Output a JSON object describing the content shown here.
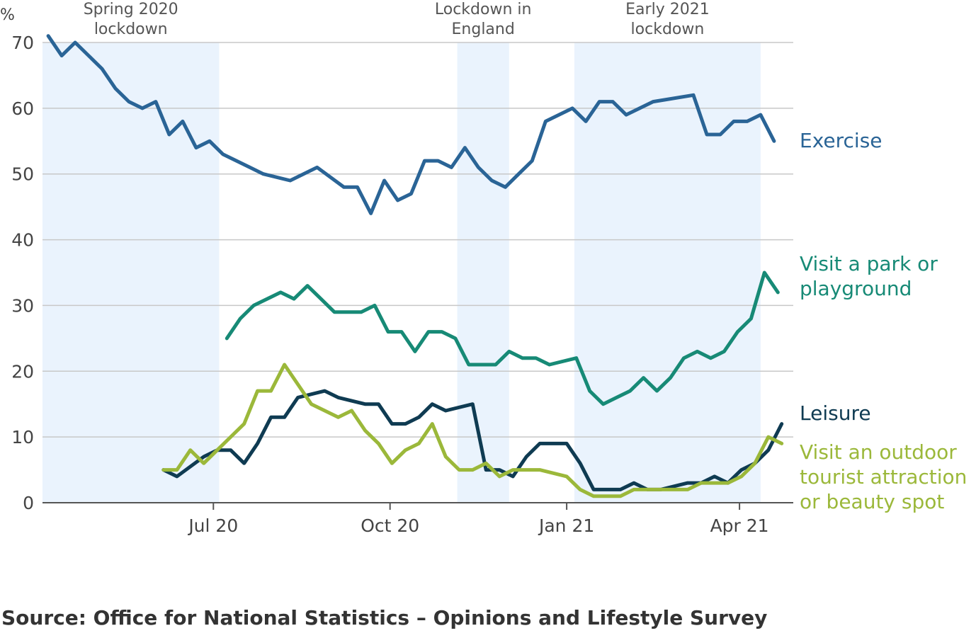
{
  "chart_data": {
    "type": "line",
    "unit_label": "%",
    "ylim": [
      0,
      72
    ],
    "y_ticks": [
      0,
      10,
      20,
      30,
      40,
      50,
      60,
      70
    ],
    "grid": true,
    "x_start": "2020-04-03",
    "x_end": "2021-04-29",
    "x_ticks": [
      {
        "date": "2020-07-01",
        "label": "Jul 20"
      },
      {
        "date": "2020-10-01",
        "label": "Oct 20"
      },
      {
        "date": "2021-01-01",
        "label": "Jan 21"
      },
      {
        "date": "2021-04-01",
        "label": "Apr 21"
      }
    ],
    "shaded_periods": [
      {
        "start": "2020-04-03",
        "end": "2020-07-04",
        "label_lines": [
          "Spring 2020",
          "lockdown"
        ]
      },
      {
        "start": "2020-11-05",
        "end": "2020-12-02",
        "label_lines": [
          "Lockdown in",
          "England"
        ]
      },
      {
        "start": "2021-01-05",
        "end": "2021-04-12",
        "label_lines": [
          "Early 2021",
          "lockdown"
        ]
      }
    ],
    "series": [
      {
        "name": "Exercise",
        "label_lines": [
          "Exercise"
        ],
        "color": "#2a6496",
        "dates": [
          "2020-04-06",
          "2020-04-13",
          "2020-04-20",
          "2020-05-04",
          "2020-05-11",
          "2020-05-18",
          "2020-05-25",
          "2020-06-01",
          "2020-06-08",
          "2020-06-15",
          "2020-06-22",
          "2020-06-29",
          "2020-07-06",
          "2020-07-13",
          "2020-07-20",
          "2020-07-27",
          "2020-08-10",
          "2020-08-24",
          "2020-09-07",
          "2020-09-14",
          "2020-09-21",
          "2020-09-28",
          "2020-10-05",
          "2020-10-12",
          "2020-10-19",
          "2020-10-26",
          "2020-11-02",
          "2020-11-09",
          "2020-11-16",
          "2020-11-23",
          "2020-11-30",
          "2020-12-07",
          "2020-12-14",
          "2020-12-21",
          "2021-01-04",
          "2021-01-11",
          "2021-01-18",
          "2021-01-25",
          "2021-02-01",
          "2021-02-08",
          "2021-02-15",
          "2021-03-08",
          "2021-03-15",
          "2021-03-22",
          "2021-03-29",
          "2021-04-05",
          "2021-04-12",
          "2021-04-19"
        ],
        "values": [
          71,
          68,
          70,
          66,
          63,
          61,
          60,
          61,
          56,
          58,
          54,
          55,
          53,
          52,
          51,
          50,
          49,
          51,
          48,
          48,
          44,
          49,
          46,
          47,
          52,
          52,
          51,
          54,
          51,
          49,
          48,
          50,
          52,
          58,
          60,
          58,
          61,
          61,
          59,
          60,
          61,
          62,
          56,
          56,
          58,
          58,
          59,
          55
        ]
      },
      {
        "name": "Visit a park or playground",
        "label_lines": [
          "Visit a park or",
          "playground"
        ],
        "color": "#178a76",
        "dates": [
          "2020-07-08",
          "2020-07-15",
          "2020-07-22",
          "2020-08-05",
          "2020-08-12",
          "2020-08-19",
          "2020-08-26",
          "2020-09-02",
          "2020-09-09",
          "2020-09-16",
          "2020-09-23",
          "2020-09-30",
          "2020-10-07",
          "2020-10-14",
          "2020-10-21",
          "2020-10-28",
          "2020-11-04",
          "2020-11-11",
          "2020-11-18",
          "2020-11-25",
          "2020-12-02",
          "2020-12-09",
          "2020-12-16",
          "2020-12-23",
          "2021-01-06",
          "2021-01-13",
          "2021-01-20",
          "2021-01-27",
          "2021-02-03",
          "2021-02-10",
          "2021-02-17",
          "2021-02-24",
          "2021-03-03",
          "2021-03-10",
          "2021-03-17",
          "2021-03-24",
          "2021-03-31",
          "2021-04-07",
          "2021-04-14",
          "2021-04-21"
        ],
        "values": [
          25,
          28,
          30,
          32,
          31,
          33,
          31,
          29,
          29,
          29,
          30,
          26,
          26,
          23,
          26,
          26,
          25,
          21,
          21,
          21,
          23,
          22,
          22,
          21,
          22,
          17,
          15,
          16,
          17,
          19,
          17,
          19,
          22,
          23,
          22,
          23,
          26,
          28,
          35,
          32
        ]
      },
      {
        "name": "Leisure",
        "label_lines": [
          "Leisure"
        ],
        "color": "#0f3b52",
        "dates": [
          "2020-06-05",
          "2020-06-12",
          "2020-06-26",
          "2020-07-03",
          "2020-07-10",
          "2020-07-17",
          "2020-07-24",
          "2020-07-31",
          "2020-08-07",
          "2020-08-14",
          "2020-08-28",
          "2020-09-04",
          "2020-09-18",
          "2020-09-25",
          "2020-10-02",
          "2020-10-09",
          "2020-10-16",
          "2020-10-23",
          "2020-10-30",
          "2020-11-13",
          "2020-11-20",
          "2020-11-27",
          "2020-12-04",
          "2020-12-11",
          "2020-12-18",
          "2021-01-01",
          "2021-01-08",
          "2021-01-15",
          "2021-01-22",
          "2021-01-29",
          "2021-02-05",
          "2021-02-12",
          "2021-02-19",
          "2021-03-05",
          "2021-03-12",
          "2021-03-19",
          "2021-03-26",
          "2021-04-02",
          "2021-04-09",
          "2021-04-16",
          "2021-04-23"
        ],
        "values": [
          5,
          4,
          7,
          8,
          8,
          6,
          9,
          13,
          13,
          16,
          17,
          16,
          15,
          15,
          12,
          12,
          13,
          15,
          14,
          15,
          5,
          5,
          4,
          7,
          9,
          9,
          6,
          2,
          2,
          2,
          3,
          2,
          2,
          3,
          3,
          4,
          3,
          5,
          6,
          8,
          12
        ]
      },
      {
        "name": "Visit an outdoor tourist attraction or beauty spot",
        "label_lines": [
          "Visit an outdoor",
          "tourist attraction",
          "or beauty spot"
        ],
        "color": "#9bb83a",
        "dates": [
          "2020-06-05",
          "2020-06-12",
          "2020-06-19",
          "2020-06-26",
          "2020-07-03",
          "2020-07-10",
          "2020-07-17",
          "2020-07-24",
          "2020-07-31",
          "2020-08-07",
          "2020-08-14",
          "2020-08-21",
          "2020-08-28",
          "2020-09-04",
          "2020-09-11",
          "2020-09-18",
          "2020-09-25",
          "2020-10-02",
          "2020-10-09",
          "2020-10-16",
          "2020-10-23",
          "2020-10-30",
          "2020-11-06",
          "2020-11-13",
          "2020-11-20",
          "2020-11-27",
          "2020-12-04",
          "2020-12-11",
          "2020-12-18",
          "2021-01-01",
          "2021-01-08",
          "2021-01-15",
          "2021-01-22",
          "2021-01-29",
          "2021-02-05",
          "2021-02-12",
          "2021-02-19",
          "2021-03-05",
          "2021-03-12",
          "2021-03-19",
          "2021-03-26",
          "2021-04-02",
          "2021-04-09",
          "2021-04-16",
          "2021-04-23"
        ],
        "values": [
          5,
          5,
          8,
          6,
          8,
          10,
          12,
          17,
          17,
          21,
          18,
          15,
          14,
          13,
          14,
          11,
          9,
          6,
          8,
          9,
          12,
          7,
          5,
          5,
          6,
          4,
          5,
          5,
          5,
          4,
          2,
          1,
          1,
          1,
          2,
          2,
          2,
          2,
          3,
          3,
          3,
          4,
          6,
          10,
          9
        ]
      }
    ]
  },
  "source": "Source: Office for National Statistics – Opinions and Lifestyle Survey"
}
